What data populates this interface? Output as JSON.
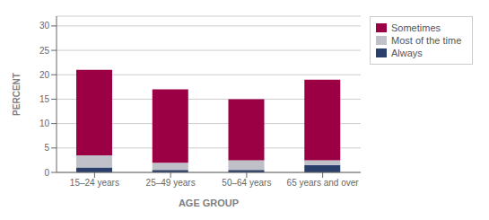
{
  "chart_data": {
    "type": "bar",
    "stacked": true,
    "categories": [
      "15–24 years",
      "25–49 years",
      "50–64 years",
      "65 years and over"
    ],
    "series": [
      {
        "name": "Always",
        "color": "#2B3F6C",
        "values": [
          1.0,
          0.5,
          0.5,
          1.5
        ]
      },
      {
        "name": "Most of the time",
        "color": "#C0C0C8",
        "values": [
          2.5,
          1.5,
          2.0,
          1.0
        ]
      },
      {
        "name": "Sometimes",
        "color": "#9B0045",
        "values": [
          17.5,
          15.0,
          12.5,
          16.5
        ]
      }
    ],
    "xlabel": "AGE GROUP",
    "ylabel": "PERCENT",
    "ylim": [
      0,
      32
    ],
    "yticks": [
      0,
      5,
      10,
      15,
      20,
      25,
      30
    ],
    "grid": true,
    "legend": "upper right"
  }
}
